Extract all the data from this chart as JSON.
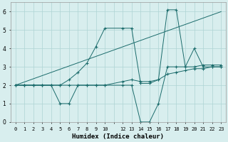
{
  "xlabel": "Humidex (Indice chaleur)",
  "xlim": [
    -0.5,
    23.5
  ],
  "ylim": [
    0,
    6.5
  ],
  "background_color": "#d8eeee",
  "grid_color": "#aed4d4",
  "line_color": "#1a6b6b",
  "xtick_labels": [
    "0",
    "1",
    "2",
    "3",
    "4",
    "5",
    "6",
    "7",
    "8",
    "9",
    "10",
    "",
    "12",
    "13",
    "14",
    "15",
    "16",
    "17",
    "18",
    "19",
    "20",
    "21",
    "22",
    "23"
  ],
  "series": [
    {
      "x": [
        0,
        1,
        2,
        3,
        4,
        5,
        6,
        7,
        8,
        9,
        10,
        12,
        13,
        14,
        15,
        16,
        17,
        18,
        19,
        20,
        21,
        22,
        23
      ],
      "y": [
        2,
        2,
        2,
        2,
        2,
        1,
        1,
        2,
        2,
        2,
        2,
        2,
        2,
        0,
        0,
        1,
        3,
        3,
        3,
        4,
        3,
        3,
        3
      ],
      "marker": true
    },
    {
      "x": [
        0,
        1,
        2,
        3,
        4,
        5,
        6,
        7,
        8,
        9,
        10,
        12,
        13,
        14,
        15,
        16,
        17,
        18,
        19,
        20,
        21,
        22,
        23
      ],
      "y": [
        2,
        2,
        2,
        2,
        2,
        2,
        2,
        2,
        2,
        2,
        2,
        2.2,
        2.3,
        2.2,
        2.2,
        2.3,
        2.6,
        2.7,
        2.8,
        2.9,
        2.9,
        3.0,
        3.0
      ],
      "marker": true
    },
    {
      "x": [
        0,
        1,
        2,
        3,
        4,
        5,
        6,
        7,
        8,
        9,
        10,
        12,
        13,
        14,
        15,
        16,
        17,
        18,
        19,
        20,
        21,
        22,
        23
      ],
      "y": [
        2,
        2,
        2,
        2,
        2,
        2,
        2.3,
        2.7,
        3.2,
        4.1,
        5.1,
        5.1,
        5.1,
        2.1,
        2.1,
        2.3,
        6.1,
        6.1,
        3.0,
        3.0,
        3.1,
        3.1,
        3.1
      ],
      "marker": true
    },
    {
      "x": [
        0,
        23
      ],
      "y": [
        2,
        6
      ],
      "marker": false
    }
  ]
}
